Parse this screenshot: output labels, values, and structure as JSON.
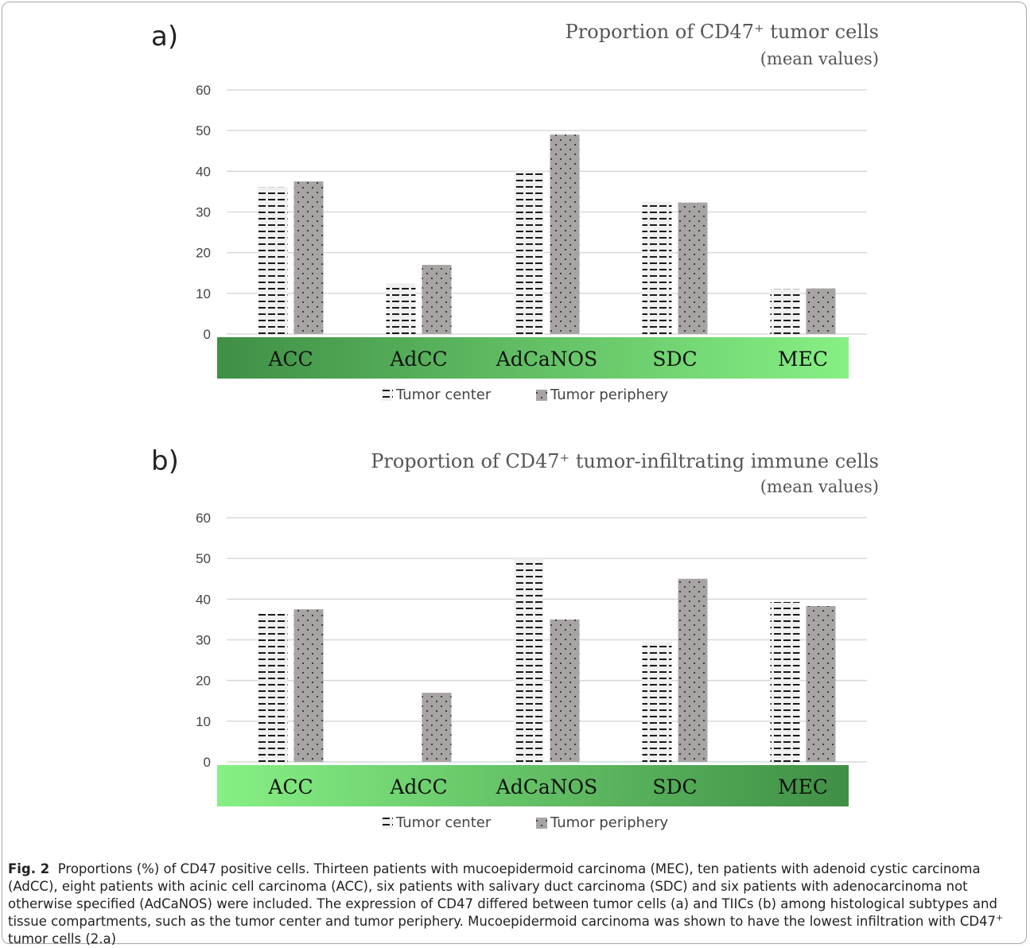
{
  "caption": {
    "label": "Fig. 2",
    "text_before_sup": "Proportions (%) of CD47 positive cells. Thirteen patients with mucoepidermoid carcinoma (MEC), ten patients with adenoid cystic carcinoma (AdCC), eight patients with acinic cell carcinoma (ACC), six patients with salivary duct carcinoma (SDC) and six patients with adenocarcinoma not otherwise specified (AdCaNOS) were included. The expression of CD47 differed between tumor cells (a) and TIICs (b) among histological subtypes and tissue compartments, such as the tumor center and tumor periphery. Mucoepidermoid carcinoma was shown to have the lowest infiltration with CD47",
    "sup": "+",
    "text_after_sup": " tumor cells (2.a)"
  },
  "colors": {
    "center_fill": "#f0f0f0",
    "center_dash": "#1a1a1a",
    "periphery_fill": "#a8a4a4",
    "periphery_dot": "#1a1a1a",
    "grid": "#d9d9d9",
    "band_dark": "#3f8f45",
    "band_light": "#86f084"
  },
  "chart_data": [
    {
      "panel": "a)",
      "type": "bar",
      "title": "Proportion of CD47⁺ tumor cells",
      "subtitle": "(mean values)",
      "categories": [
        "ACC",
        "AdCC",
        "AdCaNOS",
        "SDC",
        "MEC"
      ],
      "series": [
        {
          "name": "Tumor center",
          "values": [
            36,
            12.5,
            40,
            32.5,
            11
          ]
        },
        {
          "name": "Tumor periphery",
          "values": [
            37.5,
            17,
            49,
            32.3,
            11.2
          ]
        }
      ],
      "yticks": [
        "0",
        "10",
        "20",
        "30",
        "40",
        "50",
        "60"
      ],
      "ylim": [
        0,
        60
      ],
      "grid": true,
      "legend": "bottom",
      "band_gradient": "dark-to-light"
    },
    {
      "panel": "b)",
      "type": "bar",
      "title": "Proportion of CD47⁺ tumor-infiltrating immune cells",
      "subtitle": "(mean values)",
      "categories": [
        "ACC",
        "AdCC",
        "AdCaNOS",
        "SDC",
        "MEC"
      ],
      "series": [
        {
          "name": "Tumor center",
          "values": [
            36.5,
            0,
            50,
            29.5,
            39.3
          ]
        },
        {
          "name": "Tumor periphery",
          "values": [
            37.5,
            17,
            35,
            45,
            38.3
          ]
        }
      ],
      "yticks": [
        "0",
        "10",
        "20",
        "30",
        "40",
        "50",
        "60"
      ],
      "ylim": [
        0,
        60
      ],
      "grid": true,
      "legend": "bottom",
      "band_gradient": "light-to-dark"
    }
  ]
}
